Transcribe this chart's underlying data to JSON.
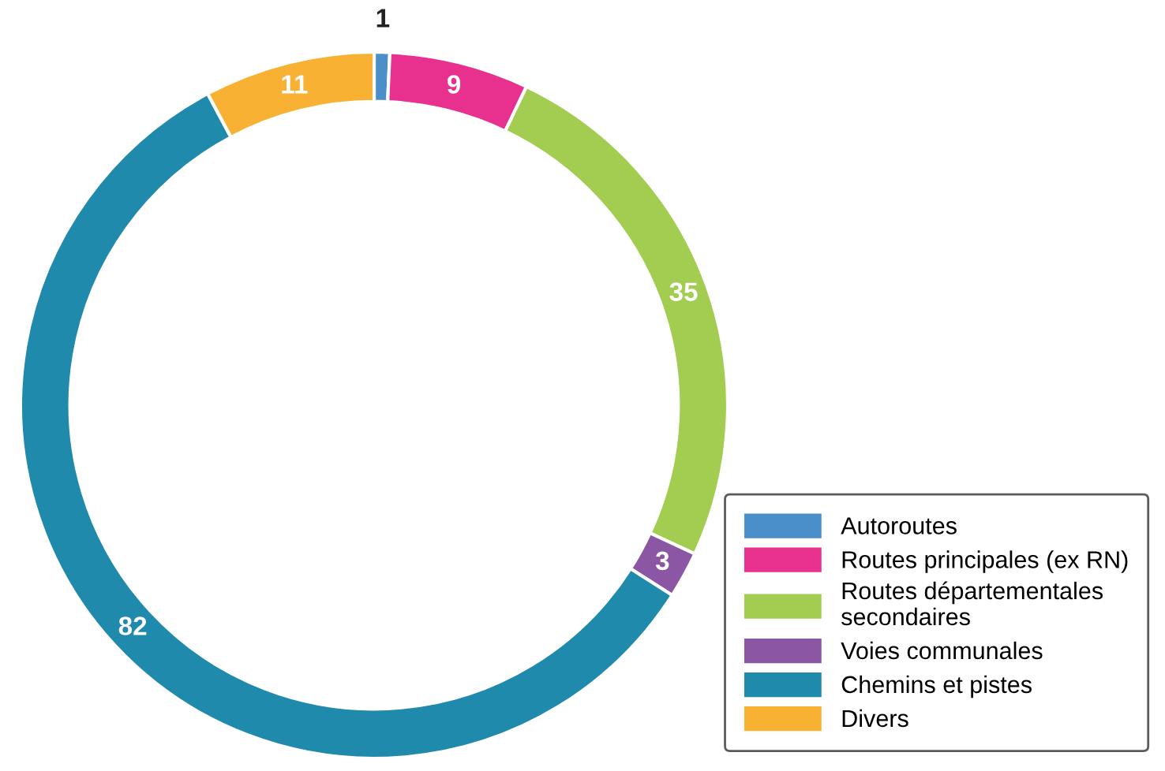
{
  "chart_data": {
    "type": "donut",
    "categories": [
      "Autoroutes",
      "Routes principales (ex RN)",
      "Routes départementales\nsecondaires",
      "Voies communales",
      "Chemins et pistes",
      "Divers"
    ],
    "values": [
      1,
      9,
      35,
      3,
      82,
      11
    ],
    "colors": [
      "#4a8fc9",
      "#e8318f",
      "#a2cd50",
      "#8b56a3",
      "#1f8aac",
      "#f8b133"
    ],
    "data_labels": true,
    "legend": "bottom right"
  }
}
